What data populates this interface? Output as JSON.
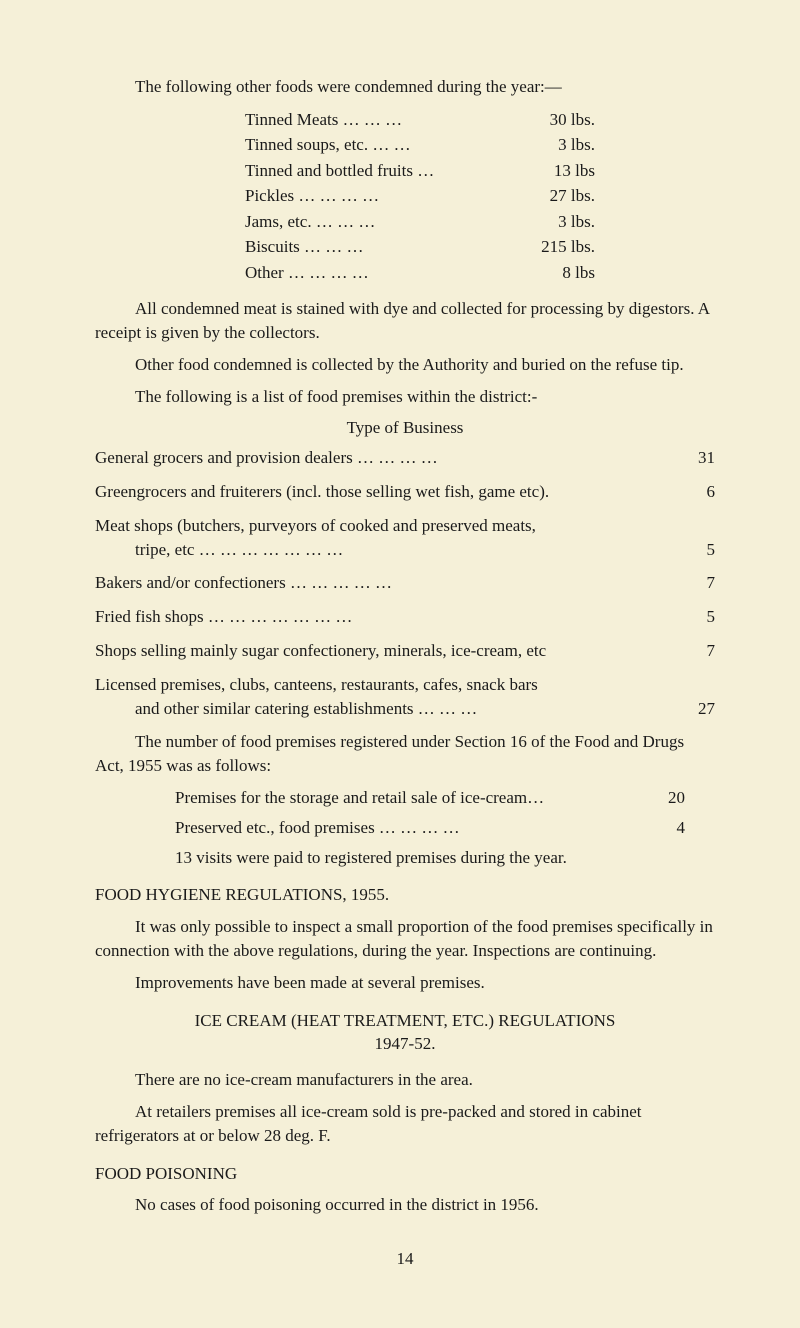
{
  "intro": "The following other foods were condemned during the year:—",
  "foods": [
    {
      "name": "Tinned Meats    …    …    …",
      "weight": "30 lbs."
    },
    {
      "name": "Tinned soups, etc.    …    …",
      "weight": "3 lbs."
    },
    {
      "name": "Tinned and bottled fruits    …",
      "weight": "13 lbs"
    },
    {
      "name": "Pickles    …    …    …    …",
      "weight": "27 lbs."
    },
    {
      "name": "Jams, etc.    …    …    …",
      "weight": "3 lbs."
    },
    {
      "name": "Biscuits    …    …    …",
      "weight": "215 lbs."
    },
    {
      "name": "Other    …    …    …    …",
      "weight": "8 lbs"
    }
  ],
  "para1": "All condemned meat is stained with dye and collected for processing by digestors. A receipt is given by the collectors.",
  "para2": "Other food condemned is collected by the Authority and buried on the refuse tip.",
  "para3": "The following is a list of food premises within the district:-",
  "businessHeading": "Type of Business",
  "businesses": [
    {
      "label": "General grocers and provision dealers    …    …    …    …",
      "count": "31"
    },
    {
      "label": "Greengrocers and fruiterers (incl. those selling wet fish, game etc).",
      "count": "6"
    },
    {
      "label": "Meat shops (butchers, purveyors of cooked and preserved meats,",
      "count": ""
    },
    {
      "label": "tripe, etc    …    …    …    …    …    …    …",
      "count": "5",
      "indent": true
    },
    {
      "label": "Bakers and/or confectioners    …    …    …    …    …",
      "count": "7"
    },
    {
      "label": "Fried fish shops    …    …    …    …    …    …    …",
      "count": "5"
    },
    {
      "label": "Shops selling mainly sugar confectionery, minerals, ice-cream, etc",
      "count": "7"
    },
    {
      "label": "Licensed premises, clubs, canteens, restaurants, cafes, snack bars",
      "count": ""
    },
    {
      "label": "and other similar catering establishments    …    …    …",
      "count": "27",
      "indent": true
    }
  ],
  "para4": "The number of food premises registered under Section 16 of the Food and Drugs Act, 1955 was as follows:",
  "premises": [
    {
      "label": "Premises for the storage and retail sale of ice-cream…",
      "count": "20"
    },
    {
      "label": "Preserved etc., food premises    …    …    …    …",
      "count": "4"
    }
  ],
  "visits": "13 visits were paid to registered premises during the year.",
  "hygieneHeading": "FOOD HYGIENE REGULATIONS, 1955.",
  "para5": "It was only possible to inspect a small proportion of the food premises specifically in connection with the above regulations, during the year. Inspections are continuing.",
  "para6": "Improvements have been made at several premises.",
  "iceCreamHeading1": "ICE CREAM (HEAT TREATMENT, ETC.) REGULATIONS",
  "iceCreamHeading2": "1947-52.",
  "para7": "There are no ice-cream manufacturers in the area.",
  "para8": "At retailers premises all ice-cream sold is pre-packed and stored in cabinet refrigerators at or below 28 deg. F.",
  "poisoningHeading": "FOOD POISONING",
  "para9": "No cases of food poisoning occurred in the district in 1956.",
  "pageNumber": "14"
}
